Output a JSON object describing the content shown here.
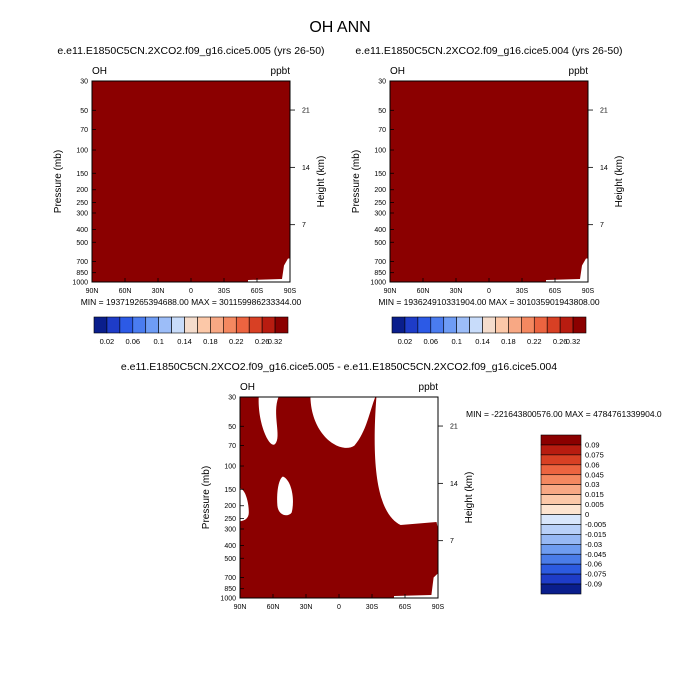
{
  "title": "OH ANN",
  "chart_data": [
    {
      "type": "heatmap",
      "title": "e.e11.E1850C5CN.2XCO2.f09_g16.cice5.005 (yrs 26-50)",
      "corner_left": "OH",
      "corner_right": "ppbt",
      "ylabel": "Pressure (mb)",
      "ylabel_right": "Height (km)",
      "x_ticks": [
        "90N",
        "60N",
        "30N",
        "0",
        "30S",
        "60S",
        "90S"
      ],
      "y_ticks": [
        "30",
        "50",
        "70",
        "100",
        "150",
        "200",
        "250",
        "300",
        "400",
        "500",
        "700",
        "850",
        "1000"
      ],
      "height_ticks": [
        "21",
        "14",
        "7"
      ],
      "stats": "MIN = 193719265394688.00   MAX = 301159986233344.00",
      "fill_color": "#8b0000"
    },
    {
      "type": "heatmap",
      "title": "e.e11.E1850C5CN.2XCO2.f09_g16.cice5.004 (yrs 26-50)",
      "corner_left": "OH",
      "corner_right": "ppbt",
      "ylabel": "Pressure (mb)",
      "ylabel_right": "Height (km)",
      "x_ticks": [
        "90N",
        "60N",
        "30N",
        "0",
        "30S",
        "60S",
        "90S"
      ],
      "y_ticks": [
        "30",
        "50",
        "70",
        "100",
        "150",
        "200",
        "250",
        "300",
        "400",
        "500",
        "700",
        "850",
        "1000"
      ],
      "height_ticks": [
        "21",
        "14",
        "7"
      ],
      "stats": "MIN = 193624910331904.00   MAX = 301035901943808.00",
      "fill_color": "#8b0000"
    },
    {
      "type": "heatmap",
      "title": "e.e11.E1850C5CN.2XCO2.f09_g16.cice5.005 - e.e11.E1850C5CN.2XCO2.f09_g16.cice5.004",
      "corner_left": "OH",
      "corner_right": "ppbt",
      "ylabel": "Pressure (mb)",
      "ylabel_right": "Height (km)",
      "x_ticks": [
        "90N",
        "60N",
        "30N",
        "0",
        "30S",
        "60S",
        "90S"
      ],
      "y_ticks": [
        "30",
        "50",
        "70",
        "100",
        "150",
        "200",
        "250",
        "300",
        "400",
        "500",
        "700",
        "850",
        "1000"
      ],
      "height_ticks": [
        "21",
        "14",
        "7"
      ],
      "stats": "MIN = -221643800576.00   MAX = 4784761339904.0",
      "fill_color": "#8b0000"
    }
  ],
  "colorbar_top": {
    "labels": [
      "0.02",
      "0.06",
      "0.1",
      "0.14",
      "0.18",
      "0.22",
      "0.26",
      "0.32"
    ],
    "colors": [
      "#0a1e8c",
      "#1e3cc8",
      "#2c5ae6",
      "#4a7cf0",
      "#6e9cf5",
      "#9cbdf8",
      "#c8dcfa",
      "#f4dccc",
      "#fcc8a8",
      "#f8a884",
      "#f48860",
      "#ec6440",
      "#d84024",
      "#b81c10",
      "#8b0000"
    ]
  },
  "colorbar_diff": {
    "labels": [
      "0.09",
      "0.075",
      "0.06",
      "0.045",
      "0.03",
      "0.015",
      "0.005",
      "0",
      "-0.005",
      "-0.015",
      "-0.03",
      "-0.045",
      "-0.06",
      "-0.075",
      "-0.09"
    ],
    "colors": [
      "#8b0000",
      "#b81c10",
      "#d84024",
      "#ec6440",
      "#f48860",
      "#f8a884",
      "#fcc8a8",
      "#fde4d0",
      "#d8e6fb",
      "#b8d0f8",
      "#96b8f4",
      "#6e9cf0",
      "#4a7ce8",
      "#2c5ae0",
      "#1e3cc8",
      "#0a1e8c"
    ]
  }
}
